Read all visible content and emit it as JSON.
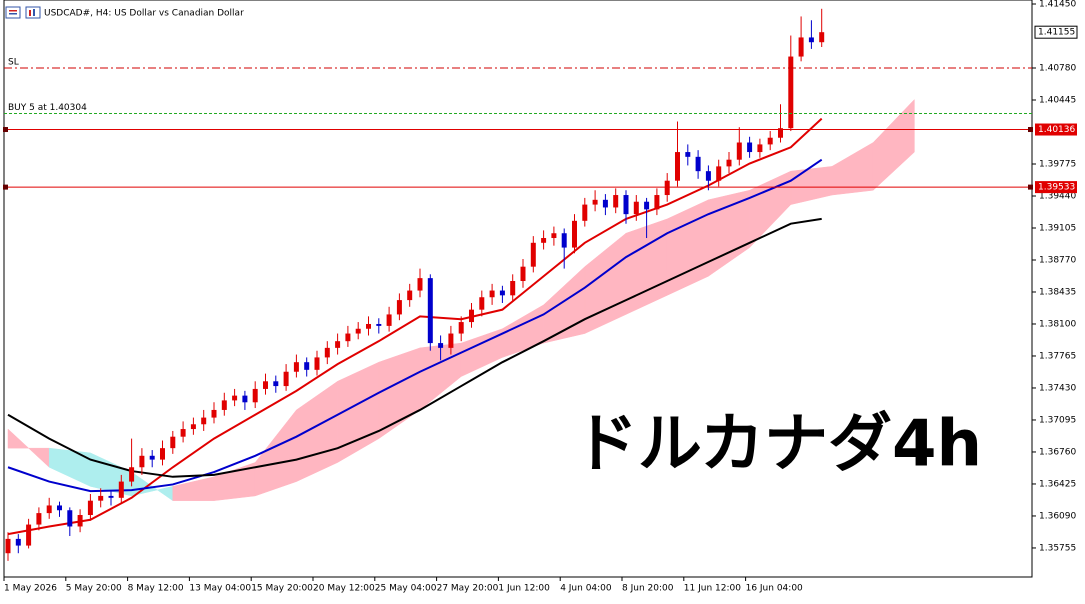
{
  "chart_data": {
    "type": "candlestick",
    "title": "USDCAD#, H4:  US Dollar vs Canadian Dollar",
    "annotation": "ドルカナダ4h",
    "up_color": "#e00000",
    "down_color": "#0000cc",
    "ylim": [
      1.35451,
      1.41492
    ],
    "yticks": [
      {
        "value": 1.4145,
        "label": "1.41450"
      },
      {
        "value": 1.4078,
        "label": "1.40780"
      },
      1.40445,
      1.39775,
      {
        "value": 1.3944,
        "label": "1.39440"
      },
      1.39105,
      {
        "value": 1.3877,
        "label": "1.38770"
      },
      1.38435,
      {
        "value": 1.381,
        "label": "1.38100"
      },
      1.37765,
      {
        "value": 1.3743,
        "label": "1.37430"
      },
      1.37095,
      {
        "value": 1.3676,
        "label": "1.36760"
      },
      1.36425,
      {
        "value": 1.3609,
        "label": "1.36090"
      },
      1.35755
    ],
    "xticks": [
      {
        "value": 0,
        "label": "1 May 2026"
      },
      {
        "value": 6,
        "label": "5 May 20:00"
      },
      {
        "value": 12,
        "label": "8 May 12:00"
      },
      {
        "value": 18,
        "label": "13 May 04:00"
      },
      {
        "value": 24,
        "label": "15 May 20:00"
      },
      {
        "value": 30,
        "label": "20 May 12:00"
      },
      {
        "value": 36,
        "label": "25 May 04:00"
      },
      {
        "value": 42,
        "label": "27 May 20:00"
      },
      {
        "value": 48,
        "label": "1 Jun 12:00"
      },
      {
        "value": 54,
        "label": "4 Jun 04:00"
      },
      {
        "value": 60,
        "label": "8 Jun 20:00"
      },
      {
        "value": 66,
        "label": "11 Jun 12:00"
      },
      {
        "value": 72,
        "label": "16 Jun 04:00"
      }
    ],
    "ohlc": [
      [
        1.357,
        1.3592,
        1.3562,
        1.3585
      ],
      [
        1.3585,
        1.359,
        1.357,
        1.3578
      ],
      [
        1.3578,
        1.3606,
        1.3575,
        1.36
      ],
      [
        1.36,
        1.3618,
        1.3594,
        1.3612
      ],
      [
        1.3612,
        1.3628,
        1.3606,
        1.362
      ],
      [
        1.362,
        1.3624,
        1.3608,
        1.3615
      ],
      [
        1.3615,
        1.3618,
        1.3588,
        1.3598
      ],
      [
        1.3598,
        1.3616,
        1.3592,
        1.361
      ],
      [
        1.361,
        1.3632,
        1.3604,
        1.3625
      ],
      [
        1.3625,
        1.3638,
        1.3618,
        1.363
      ],
      [
        1.363,
        1.3636,
        1.362,
        1.3628
      ],
      [
        1.3628,
        1.3652,
        1.3622,
        1.3645
      ],
      [
        1.3645,
        1.369,
        1.364,
        1.366
      ],
      [
        1.366,
        1.368,
        1.3652,
        1.3672
      ],
      [
        1.3672,
        1.3678,
        1.366,
        1.3668
      ],
      [
        1.3668,
        1.3688,
        1.3662,
        1.368
      ],
      [
        1.368,
        1.3698,
        1.3674,
        1.3692
      ],
      [
        1.3692,
        1.3708,
        1.3686,
        1.37
      ],
      [
        1.37,
        1.3712,
        1.3694,
        1.3705
      ],
      [
        1.3705,
        1.372,
        1.3698,
        1.3712
      ],
      [
        1.3712,
        1.3728,
        1.3706,
        1.372
      ],
      [
        1.372,
        1.3738,
        1.3714,
        1.373
      ],
      [
        1.373,
        1.3742,
        1.3724,
        1.3735
      ],
      [
        1.3735,
        1.374,
        1.372,
        1.3728
      ],
      [
        1.3728,
        1.375,
        1.3722,
        1.3742
      ],
      [
        1.3742,
        1.3758,
        1.3736,
        1.375
      ],
      [
        1.375,
        1.3756,
        1.3738,
        1.3745
      ],
      [
        1.3745,
        1.3768,
        1.374,
        1.376
      ],
      [
        1.376,
        1.3778,
        1.3754,
        1.377
      ],
      [
        1.377,
        1.3775,
        1.3755,
        1.3762
      ],
      [
        1.3762,
        1.3782,
        1.3756,
        1.3775
      ],
      [
        1.3775,
        1.3792,
        1.3768,
        1.3785
      ],
      [
        1.3785,
        1.38,
        1.3778,
        1.3792
      ],
      [
        1.3792,
        1.3808,
        1.3786,
        1.38
      ],
      [
        1.38,
        1.3812,
        1.3794,
        1.3805
      ],
      [
        1.3805,
        1.3818,
        1.3798,
        1.381
      ],
      [
        1.381,
        1.3816,
        1.38,
        1.3808
      ],
      [
        1.3808,
        1.3828,
        1.3802,
        1.382
      ],
      [
        1.382,
        1.3842,
        1.3814,
        1.3835
      ],
      [
        1.3835,
        1.3852,
        1.3828,
        1.3845
      ],
      [
        1.3845,
        1.3868,
        1.3838,
        1.3858
      ],
      [
        1.3858,
        1.3862,
        1.3782,
        1.379
      ],
      [
        1.379,
        1.3798,
        1.3772,
        1.3785
      ],
      [
        1.3785,
        1.3808,
        1.3778,
        1.38
      ],
      [
        1.38,
        1.3818,
        1.3792,
        1.3812
      ],
      [
        1.3812,
        1.3832,
        1.3806,
        1.3825
      ],
      [
        1.3825,
        1.3845,
        1.3818,
        1.3838
      ],
      [
        1.3838,
        1.3852,
        1.383,
        1.3845
      ],
      [
        1.3845,
        1.385,
        1.3832,
        1.384
      ],
      [
        1.384,
        1.3862,
        1.3834,
        1.3855
      ],
      [
        1.3855,
        1.3878,
        1.3848,
        1.387
      ],
      [
        1.387,
        1.3902,
        1.3864,
        1.3895
      ],
      [
        1.3895,
        1.3908,
        1.3888,
        1.39
      ],
      [
        1.39,
        1.3912,
        1.3892,
        1.3905
      ],
      [
        1.3905,
        1.391,
        1.3868,
        1.389
      ],
      [
        1.389,
        1.3925,
        1.3884,
        1.3918
      ],
      [
        1.3918,
        1.3942,
        1.3912,
        1.3935
      ],
      [
        1.3935,
        1.395,
        1.3928,
        1.394
      ],
      [
        1.394,
        1.3946,
        1.3924,
        1.3932
      ],
      [
        1.3932,
        1.3952,
        1.3926,
        1.3945
      ],
      [
        1.3945,
        1.395,
        1.3915,
        1.3925
      ],
      [
        1.3925,
        1.3945,
        1.3918,
        1.3938
      ],
      [
        1.3938,
        1.3942,
        1.39,
        1.393
      ],
      [
        1.393,
        1.3952,
        1.3924,
        1.3945
      ],
      [
        1.3945,
        1.3968,
        1.3938,
        1.396
      ],
      [
        1.396,
        1.4022,
        1.3954,
        1.399
      ],
      [
        1.399,
        1.3998,
        1.3976,
        1.3985
      ],
      [
        1.3985,
        1.3992,
        1.3962,
        1.397
      ],
      [
        1.397,
        1.3976,
        1.395,
        1.396
      ],
      [
        1.396,
        1.3982,
        1.3954,
        1.3975
      ],
      [
        1.3975,
        1.399,
        1.3968,
        1.3982
      ],
      [
        1.3982,
        1.4016,
        1.3976,
        1.4
      ],
      [
        1.4,
        1.4006,
        1.3984,
        1.399
      ],
      [
        1.399,
        1.4004,
        1.3984,
        1.3998
      ],
      [
        1.3998,
        1.4012,
        1.3992,
        1.4005
      ],
      [
        1.4005,
        1.404,
        1.4,
        1.4015
      ],
      [
        1.4015,
        1.4112,
        1.4012,
        1.409
      ],
      [
        1.409,
        1.4132,
        1.4085,
        1.411
      ],
      [
        1.411,
        1.4128,
        1.4098,
        1.4105
      ],
      [
        1.4105,
        1.414,
        1.41,
        1.41155
      ]
    ],
    "lines": [
      {
        "color": "#e00000",
        "x": [
          0,
          4,
          8,
          12,
          16,
          20,
          24,
          28,
          32,
          36,
          40,
          44,
          48,
          52,
          56,
          60,
          64,
          68,
          72,
          76,
          79
        ],
        "values": [
          1.359,
          1.3598,
          1.3605,
          1.3628,
          1.366,
          1.369,
          1.3715,
          1.374,
          1.3768,
          1.3792,
          1.3818,
          1.3815,
          1.3825,
          1.386,
          1.3895,
          1.392,
          1.3935,
          1.3955,
          1.3978,
          1.3995,
          1.4025
        ]
      },
      {
        "color": "#0000cc",
        "x": [
          0,
          4,
          8,
          12,
          16,
          20,
          24,
          28,
          32,
          36,
          40,
          44,
          48,
          52,
          56,
          60,
          64,
          68,
          72,
          76,
          79
        ],
        "values": [
          1.366,
          1.3645,
          1.3635,
          1.3636,
          1.3642,
          1.3655,
          1.3672,
          1.3692,
          1.3715,
          1.3738,
          1.376,
          1.378,
          1.38,
          1.382,
          1.3848,
          1.388,
          1.3905,
          1.3925,
          1.3942,
          1.396,
          1.3982
        ]
      },
      {
        "color": "#000000",
        "x": [
          0,
          4,
          8,
          12,
          16,
          20,
          24,
          28,
          32,
          36,
          40,
          44,
          48,
          52,
          56,
          60,
          64,
          68,
          72,
          76,
          79
        ],
        "values": [
          1.3715,
          1.369,
          1.3668,
          1.3656,
          1.365,
          1.3652,
          1.366,
          1.3668,
          1.368,
          1.3698,
          1.372,
          1.3745,
          1.377,
          1.3792,
          1.3815,
          1.3835,
          1.3855,
          1.3875,
          1.3895,
          1.3915,
          1.392
        ]
      }
    ],
    "cloud": {
      "up_color": "#ffb6c1",
      "down_color": "#aeeeee",
      "x": [
        0,
        4,
        8,
        12,
        16,
        20,
        24,
        28,
        32,
        36,
        40,
        44,
        48,
        52,
        56,
        60,
        64,
        68,
        72,
        76,
        80,
        84,
        88
      ],
      "span_a": [
        1.37,
        1.366,
        1.364,
        1.363,
        1.364,
        1.365,
        1.3665,
        1.372,
        1.375,
        1.377,
        1.3785,
        1.379,
        1.3805,
        1.383,
        1.387,
        1.3905,
        1.392,
        1.394,
        1.395,
        1.397,
        1.3975,
        1.4,
        1.4045
      ],
      "span_b": [
        1.368,
        1.368,
        1.3675,
        1.3655,
        1.3625,
        1.3625,
        1.363,
        1.3645,
        1.3665,
        1.369,
        1.372,
        1.3755,
        1.3775,
        1.379,
        1.38,
        1.382,
        1.384,
        1.386,
        1.389,
        1.3935,
        1.3945,
        1.395,
        1.399
      ]
    },
    "levels": [
      {
        "label": "SL",
        "value": 1.4078,
        "color": "#d00000",
        "style": "dashdot"
      },
      {
        "label": "BUY 5 at 1.40304",
        "value": 1.40304,
        "color": "#22aa22",
        "style": "dash"
      },
      {
        "value": 1.40136,
        "color": "#e00000",
        "style": "solid"
      },
      {
        "value": 1.39533,
        "color": "#e00000",
        "style": "solid"
      }
    ],
    "last_price": 1.41155
  }
}
